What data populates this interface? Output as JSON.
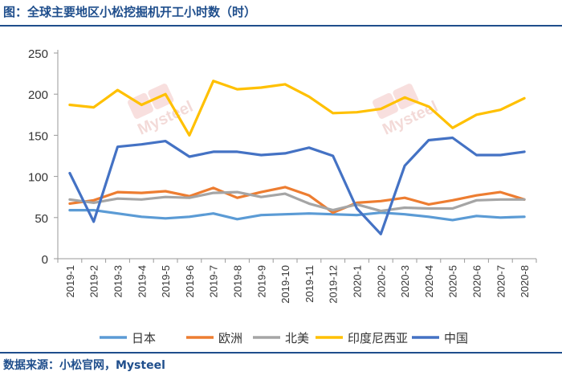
{
  "title": "图：全球主要地区小松挖掘机开工小时数（时）",
  "source": "数据来源：小松官网，Mysteel",
  "watermark": "Mysteel",
  "chart_data": {
    "type": "line",
    "title": "全球主要地区小松挖掘机开工小时数（时）",
    "xlabel": "",
    "ylabel": "",
    "ylim": [
      0,
      250
    ],
    "yticks": [
      0,
      50,
      100,
      150,
      200,
      250
    ],
    "grid": false,
    "legend_position": "bottom",
    "categories": [
      "2019-1",
      "2019-2",
      "2019-3",
      "2019-4",
      "2019-5",
      "2019-6",
      "2019-7",
      "2019-8",
      "2019-9",
      "2019-10",
      "2019-11",
      "2019-12",
      "2020-1",
      "2020-2",
      "2020-3",
      "2020-4",
      "2020-5",
      "2020-6",
      "2020-7",
      "2020-8"
    ],
    "series": [
      {
        "name": "日本",
        "color": "#5b9bd5",
        "values": [
          59,
          59,
          55,
          51,
          49,
          51,
          55,
          48,
          53,
          54,
          55,
          54,
          53,
          56,
          54,
          51,
          47,
          52,
          50,
          51
        ]
      },
      {
        "name": "欧洲",
        "color": "#ed7d31",
        "values": [
          67,
          71,
          81,
          80,
          82,
          76,
          86,
          74,
          81,
          87,
          77,
          56,
          68,
          70,
          74,
          66,
          71,
          77,
          81,
          72
        ]
      },
      {
        "name": "北美",
        "color": "#a5a5a5",
        "values": [
          72,
          68,
          73,
          72,
          75,
          74,
          80,
          81,
          75,
          79,
          67,
          59,
          66,
          58,
          62,
          61,
          61,
          71,
          72,
          72
        ]
      },
      {
        "name": "印度尼西亚",
        "color": "#ffc000",
        "values": [
          187,
          184,
          205,
          187,
          200,
          150,
          216,
          206,
          208,
          212,
          197,
          177,
          178,
          182,
          196,
          185,
          159,
          175,
          181,
          195
        ]
      },
      {
        "name": "中国",
        "color": "#4472c4",
        "values": [
          104,
          45,
          136,
          139,
          143,
          124,
          130,
          130,
          126,
          128,
          135,
          125,
          61,
          30,
          113,
          144,
          147,
          126,
          126,
          130
        ]
      }
    ]
  }
}
